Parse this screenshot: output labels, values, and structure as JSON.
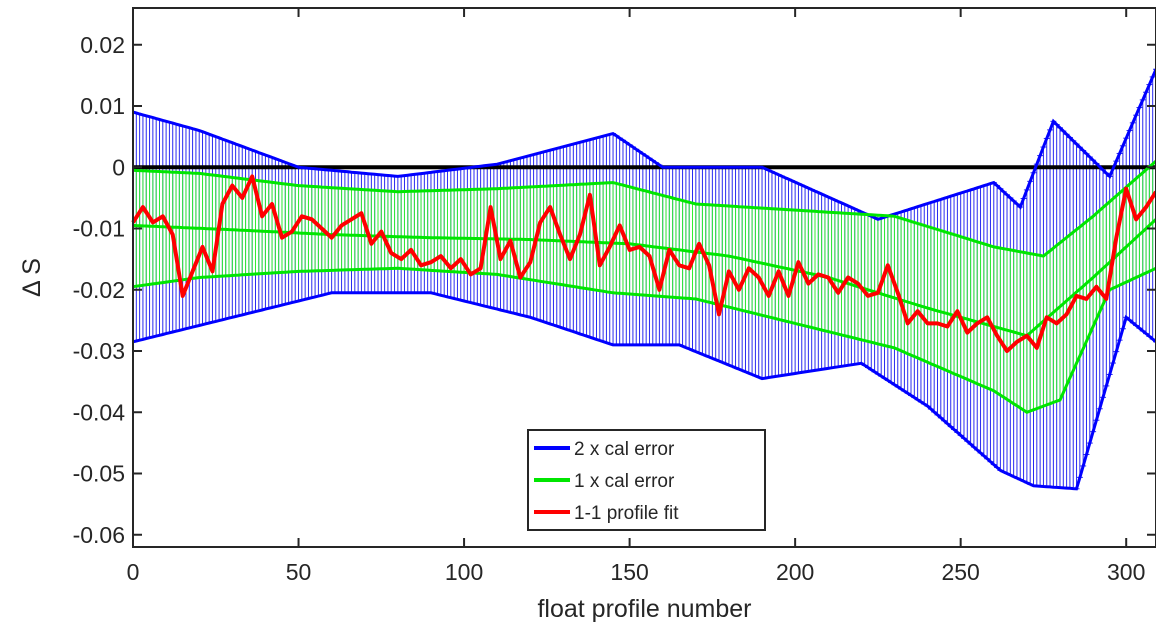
{
  "chart_data": {
    "type": "line",
    "title": "",
    "xlabel": "float profile number",
    "ylabel": "Δ S",
    "xlim": [
      0,
      309
    ],
    "ylim": [
      -0.062,
      0.026
    ],
    "xticks": [
      0,
      50,
      100,
      150,
      200,
      250,
      300
    ],
    "xtick_labels": [
      "0",
      "50",
      "100",
      "150",
      "200",
      "250",
      "300"
    ],
    "yticks": [
      0.02,
      0.01,
      0,
      -0.01,
      -0.02,
      -0.03,
      -0.04,
      -0.05,
      -0.06
    ],
    "ytick_labels": [
      "0.02",
      "0.01",
      "0",
      "-0.01",
      "-0.02",
      "-0.03",
      "-0.04",
      "-0.05",
      "-0.06"
    ],
    "grid": false,
    "legend_position": "bottom-center",
    "legend": [
      {
        "label": "2 x cal error",
        "color": "#0000ff"
      },
      {
        "label": "1 x cal error",
        "color": "#00e600"
      },
      {
        "label": "1-1 profile fit",
        "color": "#ff0000"
      }
    ],
    "zero_line": {
      "y": 0,
      "color": "#000000"
    },
    "fit_center": {
      "x": [
        0,
        30,
        60,
        90,
        120,
        150,
        180,
        210,
        240,
        270,
        290,
        309
      ],
      "y": [
        -0.0095,
        -0.0102,
        -0.011,
        -0.0115,
        -0.0118,
        -0.0125,
        -0.0145,
        -0.018,
        -0.023,
        -0.0275,
        -0.018,
        -0.0085
      ]
    },
    "one_sigma_upper": {
      "x": [
        0,
        20,
        50,
        80,
        110,
        145,
        170,
        200,
        230,
        260,
        275,
        290,
        309
      ],
      "y": [
        -0.0005,
        -0.001,
        -0.003,
        -0.004,
        -0.0035,
        -0.0025,
        -0.006,
        -0.007,
        -0.008,
        -0.013,
        -0.0145,
        -0.008,
        0.001
      ]
    },
    "one_sigma_lower": {
      "x": [
        0,
        20,
        50,
        80,
        110,
        145,
        170,
        200,
        230,
        260,
        270,
        280,
        295,
        309
      ],
      "y": [
        -0.0195,
        -0.018,
        -0.017,
        -0.0165,
        -0.0175,
        -0.0205,
        -0.0215,
        -0.0255,
        -0.0295,
        -0.0365,
        -0.04,
        -0.038,
        -0.02,
        -0.0165
      ]
    },
    "two_sigma_upper": {
      "x": [
        0,
        20,
        50,
        80,
        110,
        145,
        160,
        190,
        225,
        260,
        268,
        278,
        295,
        309
      ],
      "y": [
        0.009,
        0.006,
        0.0,
        -0.0015,
        0.0005,
        0.0055,
        0.0,
        0.0,
        -0.0085,
        -0.0025,
        -0.0065,
        0.0075,
        -0.0015,
        0.016
      ]
    },
    "two_sigma_lower": {
      "x": [
        0,
        30,
        60,
        90,
        120,
        145,
        165,
        190,
        220,
        240,
        262,
        272,
        285,
        300,
        309
      ],
      "y": [
        -0.0285,
        -0.0245,
        -0.0205,
        -0.0205,
        -0.0245,
        -0.029,
        -0.029,
        -0.0345,
        -0.032,
        -0.039,
        -0.0495,
        -0.052,
        -0.0525,
        -0.0245,
        -0.0285
      ]
    },
    "profile_fit": {
      "name": "1-1 profile fit",
      "x": [
        0,
        3,
        6,
        9,
        12,
        15,
        18,
        21,
        24,
        27,
        30,
        33,
        36,
        39,
        42,
        45,
        48,
        51,
        54,
        57,
        60,
        63,
        66,
        69,
        72,
        75,
        78,
        81,
        84,
        87,
        90,
        93,
        96,
        99,
        102,
        105,
        108,
        111,
        114,
        117,
        120,
        123,
        126,
        129,
        132,
        135,
        138,
        141,
        144,
        147,
        150,
        153,
        156,
        159,
        162,
        165,
        168,
        171,
        174,
        177,
        180,
        183,
        186,
        189,
        192,
        195,
        198,
        201,
        204,
        207,
        210,
        213,
        216,
        219,
        222,
        225,
        228,
        231,
        234,
        237,
        240,
        243,
        246,
        249,
        252,
        255,
        258,
        261,
        264,
        267,
        270,
        273,
        276,
        279,
        282,
        285,
        288,
        291,
        294,
        297,
        300,
        303,
        306,
        309
      ],
      "y": [
        -0.009,
        -0.0065,
        -0.009,
        -0.008,
        -0.011,
        -0.021,
        -0.017,
        -0.013,
        -0.017,
        -0.006,
        -0.003,
        -0.005,
        -0.0015,
        -0.008,
        -0.006,
        -0.0115,
        -0.0105,
        -0.008,
        -0.0085,
        -0.01,
        -0.0115,
        -0.0095,
        -0.0085,
        -0.0075,
        -0.0125,
        -0.0105,
        -0.014,
        -0.015,
        -0.0135,
        -0.016,
        -0.0155,
        -0.0145,
        -0.0165,
        -0.015,
        -0.0175,
        -0.0165,
        -0.0065,
        -0.015,
        -0.012,
        -0.018,
        -0.0155,
        -0.009,
        -0.0065,
        -0.011,
        -0.015,
        -0.011,
        -0.0045,
        -0.016,
        -0.013,
        -0.0095,
        -0.0135,
        -0.013,
        -0.0145,
        -0.02,
        -0.0135,
        -0.016,
        -0.0165,
        -0.0125,
        -0.016,
        -0.024,
        -0.017,
        -0.02,
        -0.0165,
        -0.018,
        -0.021,
        -0.017,
        -0.021,
        -0.0155,
        -0.019,
        -0.0175,
        -0.018,
        -0.0205,
        -0.018,
        -0.019,
        -0.021,
        -0.0205,
        -0.016,
        -0.0205,
        -0.0255,
        -0.0235,
        -0.0255,
        -0.0255,
        -0.026,
        -0.0235,
        -0.027,
        -0.0255,
        -0.0245,
        -0.0275,
        -0.03,
        -0.0285,
        -0.0275,
        -0.0295,
        -0.0245,
        -0.0255,
        -0.024,
        -0.021,
        -0.0215,
        -0.0195,
        -0.0215,
        -0.0115,
        -0.0035,
        -0.0085,
        -0.0065,
        -0.004
      ]
    }
  }
}
